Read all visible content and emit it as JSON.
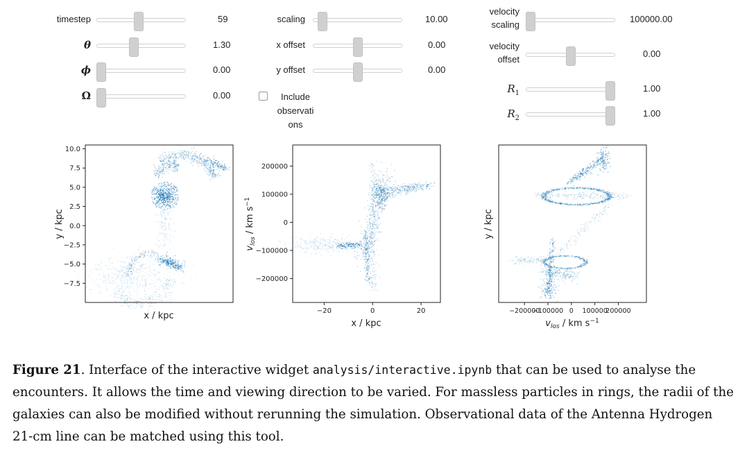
{
  "controls": {
    "timestep": {
      "label": "timestep",
      "value": "59",
      "fraction": 0.47
    },
    "theta": {
      "label": "θ",
      "value": "1.30",
      "fraction": 0.41
    },
    "phi": {
      "label": "ϕ",
      "value": "0.00",
      "fraction": 0.0
    },
    "omega": {
      "label": "Ω",
      "value": "0.00",
      "fraction": 0.0
    },
    "scaling": {
      "label": "scaling",
      "value": "10.00",
      "fraction": 0.06
    },
    "x_offset": {
      "label": "x offset",
      "value": "0.00",
      "fraction": 0.5
    },
    "y_offset": {
      "label": "y offset",
      "value": "0.00",
      "fraction": 0.5
    },
    "include_obs": {
      "label": "Include observati ons",
      "checked": false
    },
    "velocity_scaling": {
      "label": "velocity scaling",
      "value": "100000.00",
      "fraction": 0.0
    },
    "velocity_offset": {
      "label": "velocity offset",
      "value": "0.00",
      "fraction": 0.5
    },
    "r1": {
      "label_main": "R",
      "label_sub": "1",
      "value": "1.00",
      "fraction": 1.0
    },
    "r2": {
      "label_main": "R",
      "label_sub": "2",
      "value": "1.00",
      "fraction": 1.0
    }
  },
  "plots": [
    {
      "xlabel": "x / kpc",
      "ylabel": "y / kpc",
      "yticks": [
        "10.0",
        "7.5",
        "5.0",
        "2.5",
        "0.0",
        "−2.5",
        "−5.0",
        "−7.5"
      ],
      "ytick_values": [
        10.0,
        7.5,
        5.0,
        2.5,
        0.0,
        -2.5,
        -5.0,
        -7.5
      ],
      "xticks": [],
      "ylim": [
        -10.0,
        10.5
      ],
      "point_color": "#1f77b4"
    },
    {
      "xlabel": "x / kpc",
      "ylabel_main": "v",
      "ylabel_sub": "los",
      "ylabel_unit": " / km s",
      "ylabel_sup": "−1",
      "yticks": [
        "200000",
        "100000",
        "0",
        "−100000",
        "−200000"
      ],
      "ytick_values": [
        200000,
        100000,
        0,
        -100000,
        -200000
      ],
      "xticks": [
        "−20",
        "0",
        "20"
      ],
      "xtick_values": [
        -20,
        0,
        20
      ],
      "xlim": [
        -33,
        28
      ],
      "ylim": [
        -285000,
        275000
      ],
      "point_color": "#1f77b4"
    },
    {
      "xlabel_main": "v",
      "xlabel_sub": "los",
      "xlabel_unit": " / km s",
      "xlabel_sup": "−1",
      "ylabel": "y / kpc",
      "xticks": [
        "−200000",
        "−100000",
        "0",
        "100000",
        "200000"
      ],
      "xtick_values": [
        -200000,
        -100000,
        0,
        100000,
        200000
      ],
      "xlim": [
        -310000,
        320000
      ],
      "yticks": [],
      "point_color": "#1f77b4"
    }
  ],
  "caption": {
    "label": "Figure 21",
    "text_1": ". Interface of the interactive widget ",
    "code": "analysis/interactive.ipynb",
    "text_2": " that can be used to analyse the encounters. It allows the time and viewing direction to be varied. For massless particles in rings, the radii of the galaxies can also be modified without rerunning the simulation. Observational data of the Antenna Hydrogen 21-cm line can be matched using this tool."
  }
}
